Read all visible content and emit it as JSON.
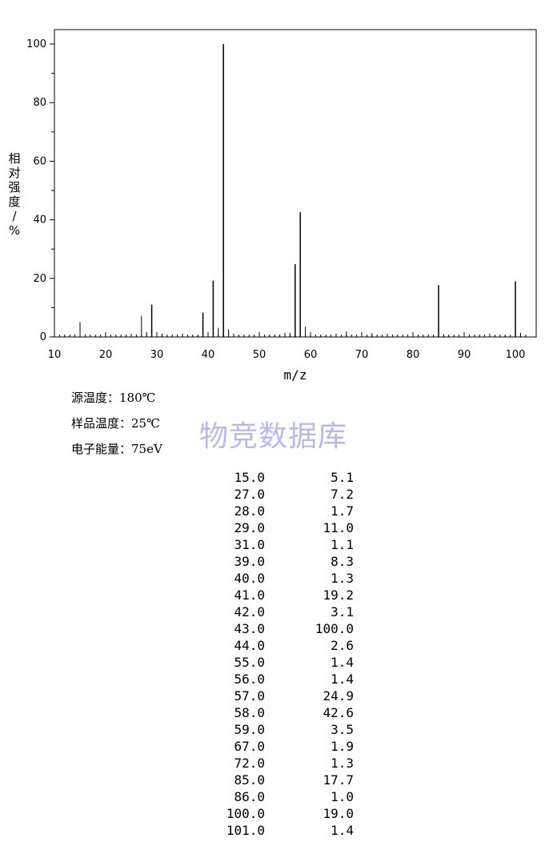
{
  "chart_data": {
    "type": "bar",
    "xlabel": "m/z",
    "ylabel": "相对强度/%",
    "xlim": [
      10,
      102
    ],
    "ylim": [
      0,
      105
    ],
    "xticks": [
      10,
      20,
      30,
      40,
      50,
      60,
      70,
      80,
      90,
      100
    ],
    "yticks": [
      0,
      20,
      40,
      60,
      80,
      100
    ],
    "grid": false,
    "peaks": [
      {
        "mz": 15.0,
        "intensity": 5.1
      },
      {
        "mz": 27.0,
        "intensity": 7.2
      },
      {
        "mz": 28.0,
        "intensity": 1.7
      },
      {
        "mz": 29.0,
        "intensity": 11.0
      },
      {
        "mz": 31.0,
        "intensity": 1.1
      },
      {
        "mz": 39.0,
        "intensity": 8.3
      },
      {
        "mz": 40.0,
        "intensity": 1.3
      },
      {
        "mz": 41.0,
        "intensity": 19.2
      },
      {
        "mz": 42.0,
        "intensity": 3.1
      },
      {
        "mz": 43.0,
        "intensity": 100.0
      },
      {
        "mz": 44.0,
        "intensity": 2.6
      },
      {
        "mz": 55.0,
        "intensity": 1.4
      },
      {
        "mz": 56.0,
        "intensity": 1.4
      },
      {
        "mz": 57.0,
        "intensity": 24.9
      },
      {
        "mz": 58.0,
        "intensity": 42.6
      },
      {
        "mz": 59.0,
        "intensity": 3.5
      },
      {
        "mz": 67.0,
        "intensity": 1.9
      },
      {
        "mz": 72.0,
        "intensity": 1.3
      },
      {
        "mz": 85.0,
        "intensity": 17.7
      },
      {
        "mz": 86.0,
        "intensity": 1.0
      },
      {
        "mz": 100.0,
        "intensity": 19.0
      },
      {
        "mz": 101.0,
        "intensity": 1.4
      }
    ],
    "minor_peaks": [
      {
        "mz": 26.0,
        "intensity": 0.6
      },
      {
        "mz": 38.0,
        "intensity": 0.5
      },
      {
        "mz": 54.0,
        "intensity": 0.4
      },
      {
        "mz": 71.0,
        "intensity": 0.6
      },
      {
        "mz": 84.0,
        "intensity": 0.4
      },
      {
        "mz": 98.0,
        "intensity": 0.4
      }
    ]
  },
  "conditions": [
    {
      "label": "源温度：",
      "value": "180℃"
    },
    {
      "label": "样品温度：",
      "value": "25℃"
    },
    {
      "label": "电子能量：",
      "value": "75eV"
    }
  ],
  "watermark": "物竞数据库",
  "peak_table": [
    {
      "mz": "15.0",
      "intensity": "5.1"
    },
    {
      "mz": "27.0",
      "intensity": "7.2"
    },
    {
      "mz": "28.0",
      "intensity": "1.7"
    },
    {
      "mz": "29.0",
      "intensity": "11.0"
    },
    {
      "mz": "31.0",
      "intensity": "1.1"
    },
    {
      "mz": "39.0",
      "intensity": "8.3"
    },
    {
      "mz": "40.0",
      "intensity": "1.3"
    },
    {
      "mz": "41.0",
      "intensity": "19.2"
    },
    {
      "mz": "42.0",
      "intensity": "3.1"
    },
    {
      "mz": "43.0",
      "intensity": "100.0"
    },
    {
      "mz": "44.0",
      "intensity": "2.6"
    },
    {
      "mz": "55.0",
      "intensity": "1.4"
    },
    {
      "mz": "56.0",
      "intensity": "1.4"
    },
    {
      "mz": "57.0",
      "intensity": "24.9"
    },
    {
      "mz": "58.0",
      "intensity": "42.6"
    },
    {
      "mz": "59.0",
      "intensity": "3.5"
    },
    {
      "mz": "67.0",
      "intensity": "1.9"
    },
    {
      "mz": "72.0",
      "intensity": "1.3"
    },
    {
      "mz": "85.0",
      "intensity": "17.7"
    },
    {
      "mz": "86.0",
      "intensity": "1.0"
    },
    {
      "mz": "100.0",
      "intensity": "19.0"
    },
    {
      "mz": "101.0",
      "intensity": "1.4"
    }
  ]
}
